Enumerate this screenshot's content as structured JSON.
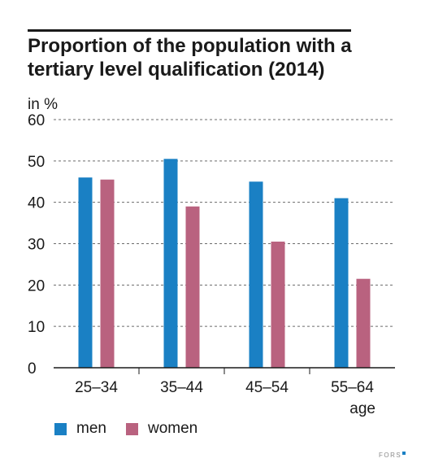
{
  "chart_data": {
    "type": "bar",
    "title": "Proportion of the population with a tertiary level qualification (2014)",
    "ylabel": "in %",
    "xlabel": "age",
    "categories": [
      "25–34",
      "35–44",
      "45–54",
      "55–64"
    ],
    "series": [
      {
        "name": "men",
        "color": "#1a80c4",
        "values": [
          46,
          50.5,
          45,
          41
        ]
      },
      {
        "name": "women",
        "color": "#b9627f",
        "values": [
          45.5,
          39,
          30.5,
          21.5
        ]
      }
    ],
    "ylim": [
      0,
      60
    ],
    "yticks": [
      0,
      10,
      20,
      30,
      40,
      50,
      60
    ],
    "grid": true,
    "grid_style": "dashed",
    "legend_position": "bottom-left"
  },
  "brand": "FORS"
}
